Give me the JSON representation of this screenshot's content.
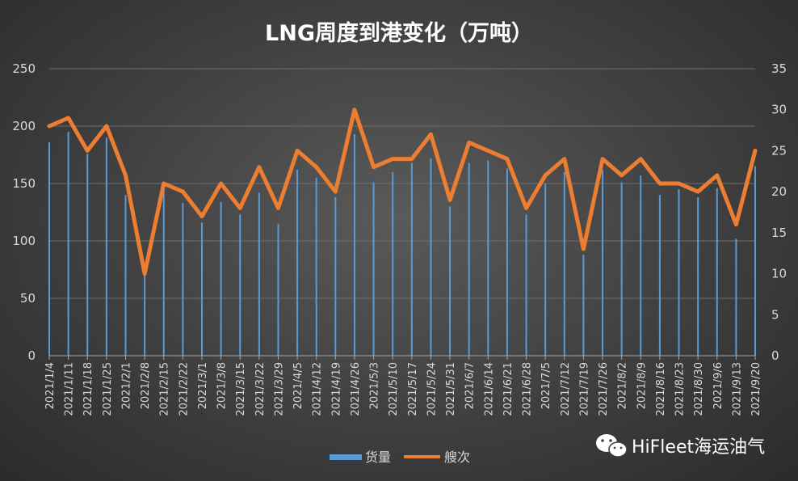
{
  "chart_data": {
    "type": "bar+line",
    "title": "LNG周度到港变化（万吨）",
    "categories": [
      "2021/1/4",
      "2021/1/11",
      "2021/1/18",
      "2021/1/25",
      "2021/2/1",
      "2021/2/8",
      "2021/2/15",
      "2021/2/22",
      "2021/3/1",
      "2021/3/8",
      "2021/3/15",
      "2021/3/22",
      "2021/3/29",
      "2021/4/5",
      "2021/4/12",
      "2021/4/19",
      "2021/4/26",
      "2021/5/3",
      "2021/5/10",
      "2021/5/17",
      "2021/5/24",
      "2021/5/31",
      "2021/6/7",
      "2021/6/14",
      "2021/6/21",
      "2021/6/28",
      "2021/7/5",
      "2021/7/12",
      "2021/7/19",
      "2021/7/26",
      "2021/8/2",
      "2021/8/9",
      "2021/8/16",
      "2021/8/23",
      "2021/8/30",
      "2021/9/6",
      "2021/9/13",
      "2021/9/20"
    ],
    "series": [
      {
        "name": "货量",
        "type": "bar",
        "axis": "left",
        "color": "#5b9bd5",
        "values": [
          186,
          195,
          176,
          190,
          140,
          75,
          145,
          133,
          116,
          134,
          123,
          142,
          115,
          162,
          155,
          138,
          193,
          151,
          160,
          168,
          172,
          130,
          168,
          170,
          163,
          123,
          150,
          160,
          88,
          162,
          151,
          157,
          140,
          145,
          138,
          146,
          102,
          165
        ]
      },
      {
        "name": "艘次",
        "type": "line",
        "axis": "right",
        "color": "#ed7d31",
        "values": [
          28,
          29,
          25,
          28,
          22,
          10,
          21,
          20,
          17,
          21,
          18,
          23,
          18,
          25,
          23,
          20,
          30,
          23,
          24,
          24,
          27,
          19,
          26,
          25,
          24,
          18,
          22,
          24,
          13,
          24,
          22,
          24,
          21,
          21,
          20,
          22,
          16,
          25
        ]
      }
    ],
    "y_left": {
      "min": 0,
      "max": 250,
      "ticks": [
        0,
        50,
        100,
        150,
        200,
        250
      ]
    },
    "y_right": {
      "min": 0,
      "max": 35,
      "ticks": [
        0,
        5,
        10,
        15,
        20,
        25,
        30,
        35
      ]
    },
    "grid": true,
    "legend_position": "bottom"
  },
  "watermark": {
    "text": "HiFleet海运油气",
    "icon": "wechat-icon"
  }
}
